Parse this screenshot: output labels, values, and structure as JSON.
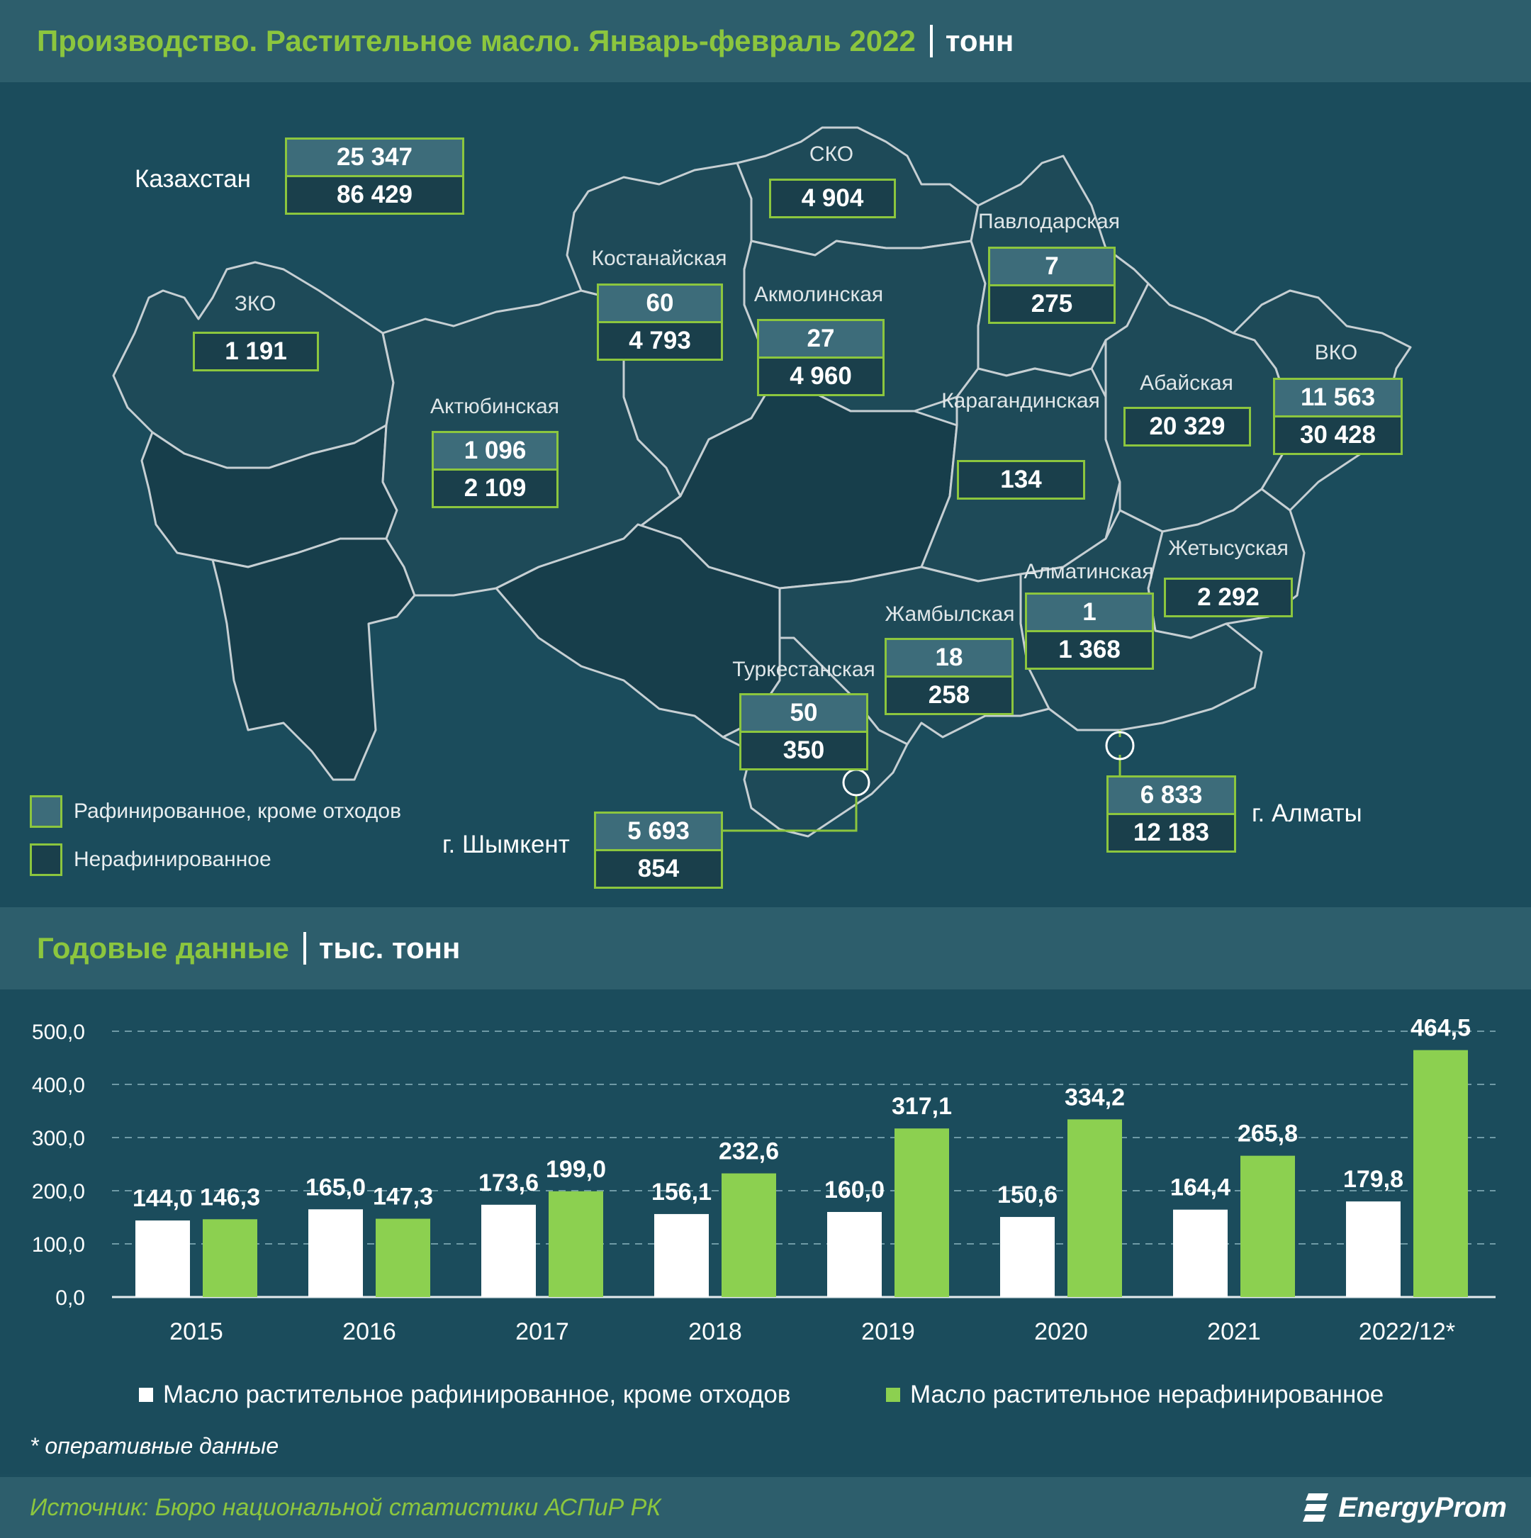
{
  "header": {
    "title": "Производство. Растительное масло. Январь-февраль 2022",
    "unit": "тонн"
  },
  "map": {
    "country": {
      "label": "Казахстан",
      "refined": "25 347",
      "unrefined": "86 429"
    },
    "regions": [
      {
        "name": "СКО",
        "unrefined": "4 904"
      },
      {
        "name": "Павлодарская",
        "refined": "7",
        "unrefined": "275"
      },
      {
        "name": "Костанайская",
        "refined": "60",
        "unrefined": "4 793"
      },
      {
        "name": "Акмолинская",
        "refined": "27",
        "unrefined": "4 960"
      },
      {
        "name": "ЗКО",
        "unrefined": "1 191"
      },
      {
        "name": "Актюбинская",
        "refined": "1 096",
        "unrefined": "2 109"
      },
      {
        "name": "Карагандинская",
        "unrefined": "134"
      },
      {
        "name": "Абайская",
        "unrefined": "20 329"
      },
      {
        "name": "ВКО",
        "refined": "11 563",
        "unrefined": "30 428"
      },
      {
        "name": "Жетысуская",
        "unrefined": "2 292"
      },
      {
        "name": "Алматинская",
        "refined": "1",
        "unrefined": "1 368"
      },
      {
        "name": "Жамбылская",
        "refined": "18",
        "unrefined": "258"
      },
      {
        "name": "Туркестанская",
        "refined": "50",
        "unrefined": "350"
      }
    ],
    "cities": [
      {
        "name": "г. Шымкент",
        "refined": "5 693",
        "unrefined": "854"
      },
      {
        "name": "г. Алматы",
        "refined": "6 833",
        "unrefined": "12 183"
      }
    ],
    "legend": {
      "refined": "Рафинированное, кроме отходов",
      "unrefined": "Нерафинированное"
    }
  },
  "annual": {
    "title": "Годовые данные",
    "unit": "тыс. тонн"
  },
  "chart_data": {
    "type": "bar",
    "categories": [
      "2015",
      "2016",
      "2017",
      "2018",
      "2019",
      "2020",
      "2021",
      "2022/12*"
    ],
    "series": [
      {
        "name": "Масло растительное рафинированное, кроме отходов",
        "values": [
          144.0,
          165.0,
          173.6,
          156.1,
          160.0,
          150.6,
          164.4,
          179.8
        ],
        "labels": [
          "144,0",
          "165,0",
          "173,6",
          "156,1",
          "160,0",
          "150,6",
          "164,4",
          "179,8"
        ],
        "color": "#ffffff"
      },
      {
        "name": "Масло растительное нерафинированное",
        "values": [
          146.3,
          147.3,
          199.0,
          232.6,
          317.1,
          334.2,
          265.8,
          464.5
        ],
        "labels": [
          "146,3",
          "147,3",
          "199,0",
          "232,6",
          "317,1",
          "334,2",
          "265,8",
          "464,5"
        ],
        "color": "#8cd050"
      }
    ],
    "ylim": [
      0,
      500
    ],
    "yticks": [
      "0,0",
      "100,0",
      "200,0",
      "300,0",
      "400,0",
      "500,0"
    ],
    "grid": true,
    "legend_position": "bottom"
  },
  "footnote": "* оперативные данные",
  "footer": {
    "source": "Источник: Бюро национальной статистики АСПиР РК",
    "logo": "EnergyProm"
  }
}
